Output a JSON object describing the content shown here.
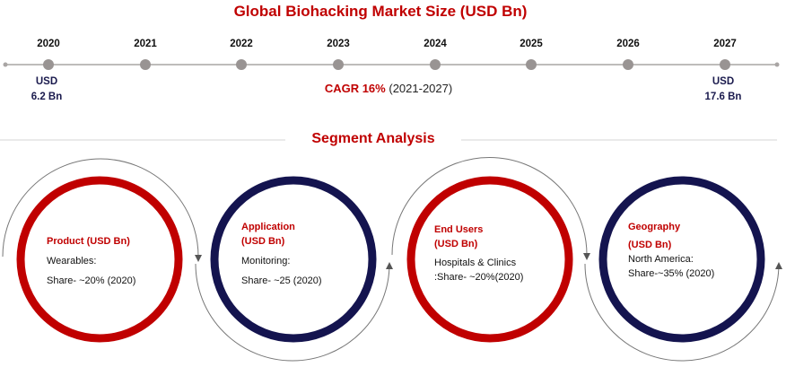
{
  "title": "Global Biohacking Market Size (USD Bn)",
  "timeline": {
    "years": [
      "2020",
      "2021",
      "2022",
      "2023",
      "2024",
      "2025",
      "2026",
      "2027"
    ],
    "start": {
      "line1": "USD",
      "line2": "6.2 Bn"
    },
    "end": {
      "line1": "USD",
      "line2": "17.6 Bn"
    },
    "cagr_label": "CAGR 16%",
    "cagr_period": "(2021-2027)"
  },
  "section_title": "Segment Analysis",
  "segments": [
    {
      "title": "Product (USD Bn)",
      "title2": "",
      "line1": "Wearables:",
      "line2": "Share- ~20% (2020)",
      "ring_color": "#c00000"
    },
    {
      "title": "Application",
      "title2": "(USD Bn)",
      "line1": "Monitoring:",
      "line2": "Share- ~25  (2020)",
      "ring_color": "#14144f"
    },
    {
      "title": "End Users",
      "title2": "(USD Bn)",
      "line1": "Hospitals & Clinics",
      "line2": ":Share- ~20%(2020)",
      "ring_color": "#c00000"
    },
    {
      "title": "Geography",
      "title2": "(USD Bn)",
      "line1": "North America:",
      "line2": "Share-~35% (2020)",
      "ring_color": "#14144f"
    }
  ],
  "colors": {
    "accent": "#c00000",
    "navy": "#14144f",
    "timeline_gray": "#999493"
  }
}
